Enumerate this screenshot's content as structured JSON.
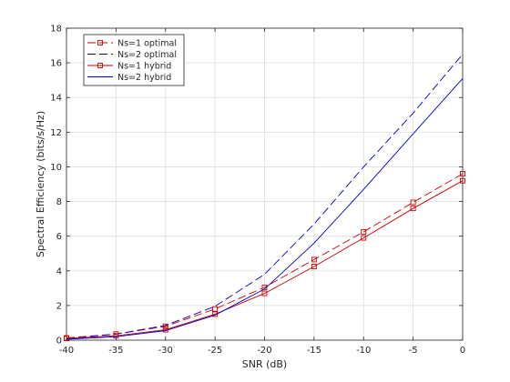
{
  "chart_data": {
    "type": "line",
    "title": "",
    "xlabel": "SNR (dB)",
    "ylabel": "Spectral Efficiency (bits/s/Hz)",
    "xlim": [
      -40,
      0
    ],
    "ylim": [
      0,
      18
    ],
    "xticks": [
      -40,
      -35,
      -30,
      -25,
      -20,
      -15,
      -10,
      -5,
      0
    ],
    "yticks": [
      0,
      2,
      4,
      6,
      8,
      10,
      12,
      14,
      16,
      18
    ],
    "grid": true,
    "legend_position": "top-left",
    "x": [
      -40,
      -35,
      -30,
      -25,
      -20,
      -15,
      -10,
      -5,
      0
    ],
    "series": [
      {
        "name": "Ns=1 optimal",
        "color": "#cc0000",
        "line_style": "dashed",
        "marker": "square",
        "values": [
          0.13,
          0.35,
          0.8,
          1.8,
          3.05,
          4.65,
          6.25,
          7.95,
          9.6
        ]
      },
      {
        "name": "Ns=2 optimal",
        "color": "#0000cc",
        "line_style": "dashed",
        "marker": "none",
        "values": [
          0.1,
          0.35,
          0.85,
          1.95,
          3.8,
          6.7,
          10.0,
          13.1,
          16.5
        ]
      },
      {
        "name": "Ns=1 hybrid",
        "color": "#cc0000",
        "line_style": "solid",
        "marker": "square",
        "values": [
          0.1,
          0.25,
          0.6,
          1.5,
          2.7,
          4.25,
          5.9,
          7.6,
          9.2
        ]
      },
      {
        "name": "Ns=2 hybrid",
        "color": "#0000cc",
        "line_style": "solid",
        "marker": "none",
        "values": [
          0.05,
          0.2,
          0.55,
          1.45,
          2.95,
          5.6,
          8.7,
          11.9,
          15.1
        ]
      }
    ]
  }
}
